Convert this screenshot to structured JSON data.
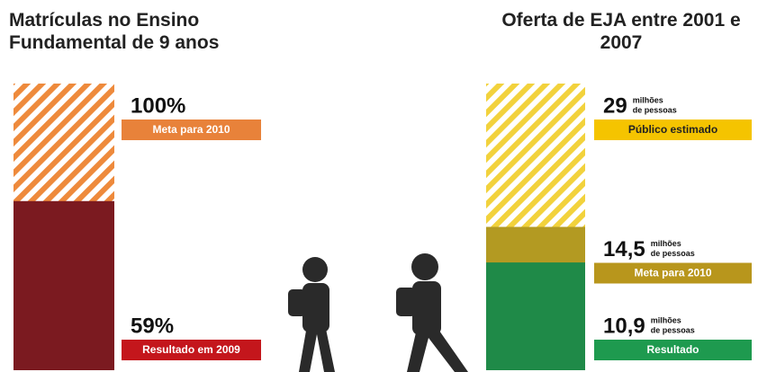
{
  "chart_data": [
    {
      "type": "bar",
      "title": "Matrículas no Ensino Fundamental de 9 anos",
      "series": [
        {
          "name": "Meta para 2010",
          "color": "#ee8a3c",
          "label_color": "#e8823a",
          "pattern": "striped",
          "values": [
            100
          ],
          "value_labels": [
            "100%"
          ]
        },
        {
          "name": "Resultado em 2009",
          "color": "#7b1a20",
          "label_color": "#c4161c",
          "values": [
            59
          ],
          "value_labels": [
            "59%"
          ]
        }
      ]
    },
    {
      "type": "bar",
      "title": "Oferta de EJA entre 2001 e 2007",
      "unit_lines": [
        "milhões",
        "de pessoas"
      ],
      "series": [
        {
          "name": "Público estimado",
          "color": "#f2d23c",
          "label_color": "#f5c400",
          "pattern": "striped",
          "values": [
            29
          ]
        },
        {
          "name": "Meta para 2010",
          "color": "#b39a22",
          "label_color": "#b8961c",
          "values": [
            14.5
          ],
          "value_labels": [
            "14,5"
          ]
        },
        {
          "name": "Resultado",
          "color": "#1f8a48",
          "label_color": "#1e9a4f",
          "values": [
            10.9
          ],
          "value_labels": [
            "10,9"
          ]
        }
      ]
    }
  ]
}
